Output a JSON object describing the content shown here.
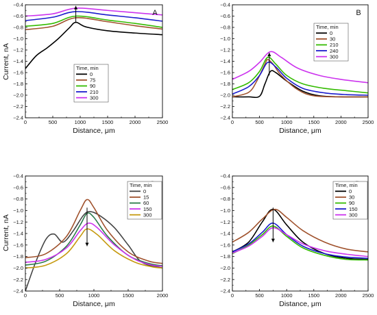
{
  "chart_data": [
    {
      "type": "line",
      "panel_label": "A",
      "xlabel": "Distance, μm",
      "ylabel": "Current, nA",
      "xlim": [
        0,
        2500
      ],
      "ylim": [
        -2.4,
        -0.4
      ],
      "x_ticks": [
        0,
        500,
        1000,
        1500,
        2000,
        2500
      ],
      "y_ticks": [
        -2.4,
        -2.2,
        -2.0,
        -1.8,
        -1.6,
        -1.4,
        -1.2,
        -1.0,
        -0.8,
        -0.6,
        -0.4
      ],
      "grid": false,
      "legend": {
        "title": "Time, min",
        "placement": "center"
      },
      "annotation_arrow": {
        "x": 920,
        "y_from": -0.72,
        "y_to": -0.42,
        "direction": "up"
      },
      "series": [
        {
          "name": "0",
          "color": "#000000",
          "x": [
            0,
            200,
            400,
            600,
            800,
            920,
            1100,
            1500,
            2000,
            2500
          ],
          "y": [
            -1.53,
            -1.3,
            -1.16,
            -1.0,
            -0.81,
            -0.71,
            -0.79,
            -0.86,
            -0.9,
            -0.93
          ]
        },
        {
          "name": "75",
          "color": "#a0522d",
          "x": [
            0,
            500,
            920,
            1500,
            2000,
            2500
          ],
          "y": [
            -0.84,
            -0.78,
            -0.63,
            -0.7,
            -0.77,
            -0.83
          ]
        },
        {
          "name": "90",
          "color": "#33bb00",
          "x": [
            0,
            500,
            920,
            1500,
            2000,
            2500
          ],
          "y": [
            -0.78,
            -0.73,
            -0.6,
            -0.67,
            -0.73,
            -0.8
          ]
        },
        {
          "name": "210",
          "color": "#1a1acc",
          "x": [
            0,
            500,
            920,
            1500,
            2000,
            2500
          ],
          "y": [
            -0.68,
            -0.62,
            -0.52,
            -0.58,
            -0.63,
            -0.69
          ]
        },
        {
          "name": "300",
          "color": "#cc33ee",
          "x": [
            0,
            500,
            920,
            1500,
            2000,
            2500
          ],
          "y": [
            -0.6,
            -0.56,
            -0.46,
            -0.5,
            -0.54,
            -0.58
          ]
        }
      ]
    },
    {
      "type": "line",
      "panel_label": "B",
      "xlabel": "Distance, μm",
      "ylabel": "",
      "xlim": [
        0,
        2500
      ],
      "ylim": [
        -2.4,
        -0.4
      ],
      "x_ticks": [
        0,
        500,
        1000,
        1500,
        2000,
        2500
      ],
      "y_ticks": [
        -2.4,
        -2.2,
        -2.0,
        -1.8,
        -1.6,
        -1.4,
        -1.2,
        -1.0,
        -0.8,
        -0.6,
        -0.4
      ],
      "grid": false,
      "legend": {
        "title": "Time, min",
        "placement": "top-left"
      },
      "annotation_arrow": {
        "x": 680,
        "y_from": -1.65,
        "y_to": -1.25,
        "direction": "up"
      },
      "series": [
        {
          "name": "0",
          "color": "#000000",
          "x": [
            0,
            300,
            500,
            600,
            700,
            800,
            1000,
            1300,
            1600,
            2000,
            2500
          ],
          "y": [
            -2.03,
            -2.03,
            -2.02,
            -1.8,
            -1.58,
            -1.6,
            -1.75,
            -1.93,
            -2.01,
            -2.03,
            -2.03
          ]
        },
        {
          "name": "30",
          "color": "#a0522d",
          "x": [
            0,
            300,
            450,
            600,
            650,
            750,
            900,
            1200,
            1500,
            2000,
            2500
          ],
          "y": [
            -2.03,
            -1.95,
            -1.75,
            -1.45,
            -1.37,
            -1.45,
            -1.65,
            -1.9,
            -2.01,
            -2.03,
            -2.03
          ]
        },
        {
          "name": "210",
          "color": "#33bb00",
          "x": [
            0,
            300,
            500,
            650,
            800,
            1000,
            1300,
            1700,
            2100,
            2500
          ],
          "y": [
            -1.9,
            -1.78,
            -1.58,
            -1.33,
            -1.45,
            -1.65,
            -1.8,
            -1.88,
            -1.92,
            -1.96
          ]
        },
        {
          "name": "240",
          "color": "#1a1acc",
          "x": [
            0,
            300,
            500,
            650,
            800,
            1000,
            1300,
            1700,
            2100,
            2500
          ],
          "y": [
            -1.98,
            -1.85,
            -1.65,
            -1.42,
            -1.5,
            -1.7,
            -1.88,
            -1.96,
            -1.99,
            -2.0
          ]
        },
        {
          "name": "300",
          "color": "#cc33ee",
          "x": [
            0,
            300,
            500,
            700,
            900,
            1200,
            1600,
            2000,
            2500
          ],
          "y": [
            -1.72,
            -1.58,
            -1.42,
            -1.23,
            -1.33,
            -1.52,
            -1.65,
            -1.72,
            -1.78
          ]
        }
      ]
    },
    {
      "type": "line",
      "panel_label": "C",
      "xlabel": "Distance, μm",
      "ylabel": "Current, nA",
      "xlim": [
        0,
        2000
      ],
      "ylim": [
        -2.4,
        -0.4
      ],
      "x_ticks": [
        0,
        500,
        1000,
        1500,
        2000
      ],
      "y_ticks": [
        -2.4,
        -2.2,
        -2.0,
        -1.8,
        -1.6,
        -1.4,
        -1.2,
        -1.0,
        -0.8,
        -0.6,
        -0.4
      ],
      "grid": false,
      "legend": {
        "title": "Time, min",
        "placement": "top-right"
      },
      "annotation_arrow": {
        "x": 900,
        "y_from": -0.95,
        "y_to": -1.62,
        "direction": "down"
      },
      "series": [
        {
          "name": "0",
          "color": "#444444",
          "x": [
            0,
            150,
            300,
            420,
            550,
            700,
            850,
            950,
            1100,
            1300,
            1500,
            1700,
            2000
          ],
          "y": [
            -2.4,
            -1.9,
            -1.5,
            -1.41,
            -1.55,
            -1.35,
            -1.08,
            -1.02,
            -1.1,
            -1.3,
            -1.6,
            -1.9,
            -2.0
          ]
        },
        {
          "name": "15",
          "color": "#a0522d",
          "x": [
            0,
            300,
            600,
            800,
            900,
            1000,
            1200,
            1500,
            1800,
            2000
          ],
          "y": [
            -1.82,
            -1.75,
            -1.45,
            -1.0,
            -0.81,
            -0.95,
            -1.35,
            -1.72,
            -1.88,
            -1.92
          ]
        },
        {
          "name": "60",
          "color": "#2a7a4a",
          "x": [
            0,
            300,
            600,
            800,
            900,
            1000,
            1200,
            1500,
            1800,
            2000
          ],
          "y": [
            -1.95,
            -1.88,
            -1.62,
            -1.25,
            -1.05,
            -1.12,
            -1.45,
            -1.78,
            -1.92,
            -1.96
          ]
        },
        {
          "name": "150",
          "color": "#cc33ee",
          "x": [
            0,
            300,
            600,
            800,
            920,
            1050,
            1300,
            1600,
            1850,
            2000
          ],
          "y": [
            -1.9,
            -1.85,
            -1.65,
            -1.35,
            -1.22,
            -1.3,
            -1.6,
            -1.85,
            -1.95,
            -1.97
          ]
        },
        {
          "name": "300",
          "color": "#c69a10",
          "x": [
            0,
            300,
            600,
            800,
            900,
            1050,
            1300,
            1600,
            1850,
            2000
          ],
          "y": [
            -2.0,
            -1.95,
            -1.75,
            -1.45,
            -1.32,
            -1.42,
            -1.7,
            -1.9,
            -1.98,
            -2.0
          ]
        }
      ]
    },
    {
      "type": "line",
      "panel_label": "D",
      "xlabel": "Distance, μm",
      "ylabel": "",
      "xlim": [
        0,
        2500
      ],
      "ylim": [
        -2.4,
        -0.4
      ],
      "x_ticks": [
        0,
        500,
        1000,
        1500,
        2000,
        2500
      ],
      "y_ticks": [
        -2.4,
        -2.2,
        -2.0,
        -1.8,
        -1.6,
        -1.4,
        -1.2,
        -1.0,
        -0.8,
        -0.6,
        -0.4
      ],
      "grid": false,
      "legend": {
        "title": "Time, min",
        "placement": "top-right"
      },
      "annotation_arrow": {
        "x": 750,
        "y_from": -0.95,
        "y_to": -1.55,
        "direction": "down"
      },
      "series": [
        {
          "name": "0",
          "color": "#000000",
          "x": [
            0,
            300,
            550,
            750,
            1000,
            1300,
            1700,
            2100,
            2500
          ],
          "y": [
            -1.72,
            -1.55,
            -1.2,
            -0.98,
            -1.25,
            -1.55,
            -1.75,
            -1.83,
            -1.85
          ]
        },
        {
          "name": "30",
          "color": "#a0522d",
          "x": [
            0,
            300,
            550,
            780,
            1000,
            1300,
            1700,
            2100,
            2500
          ],
          "y": [
            -1.55,
            -1.38,
            -1.15,
            -0.98,
            -1.12,
            -1.35,
            -1.55,
            -1.67,
            -1.72
          ]
        },
        {
          "name": "90",
          "color": "#33bb00",
          "x": [
            0,
            300,
            550,
            750,
            1000,
            1300,
            1700,
            2100,
            2500
          ],
          "y": [
            -1.75,
            -1.6,
            -1.42,
            -1.27,
            -1.45,
            -1.65,
            -1.78,
            -1.85,
            -1.86
          ]
        },
        {
          "name": "150",
          "color": "#1a1acc",
          "x": [
            0,
            300,
            550,
            750,
            1000,
            1300,
            1700,
            2100,
            2500
          ],
          "y": [
            -1.72,
            -1.58,
            -1.38,
            -1.22,
            -1.42,
            -1.62,
            -1.75,
            -1.81,
            -1.83
          ]
        },
        {
          "name": "300",
          "color": "#cc33ee",
          "x": [
            0,
            300,
            550,
            750,
            1000,
            1300,
            1700,
            2100,
            2500
          ],
          "y": [
            -1.74,
            -1.62,
            -1.45,
            -1.3,
            -1.42,
            -1.58,
            -1.7,
            -1.76,
            -1.8
          ]
        }
      ]
    }
  ]
}
